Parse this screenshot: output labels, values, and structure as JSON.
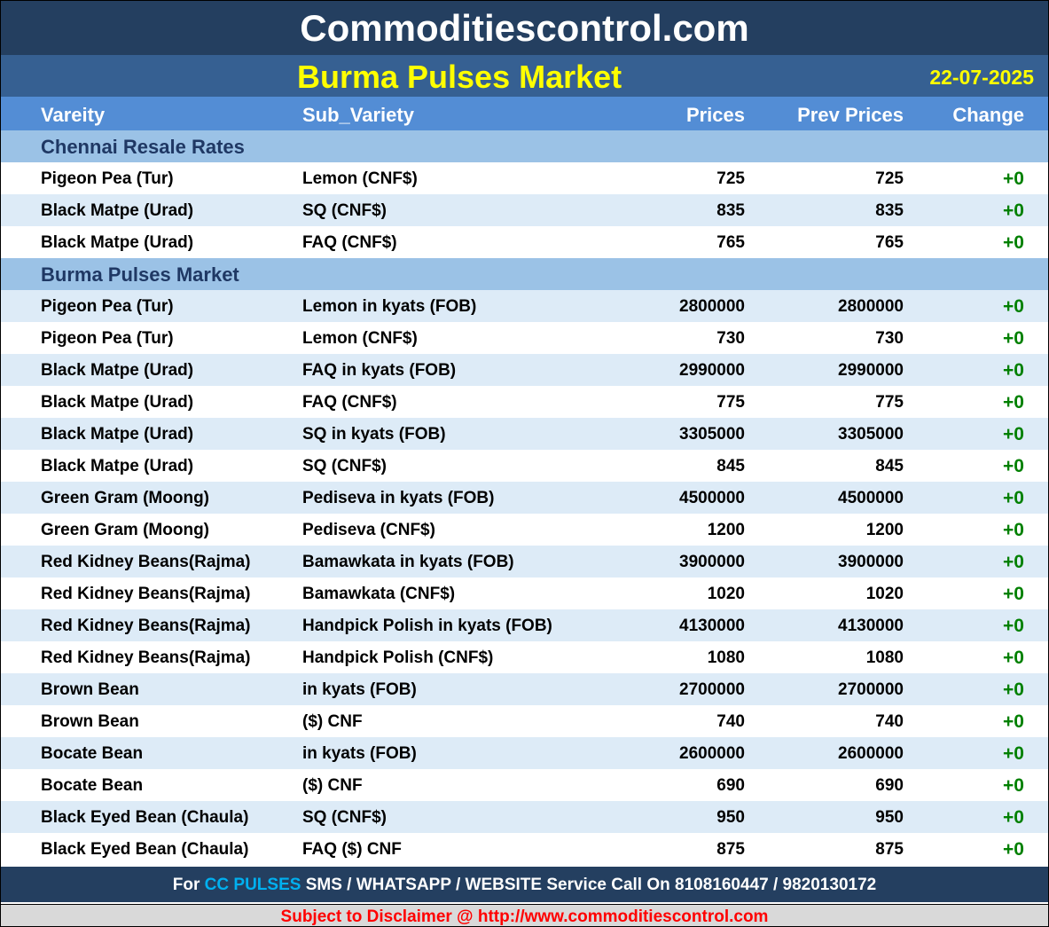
{
  "site_title": "Commoditiescontrol.com",
  "market_title": "Burma Pulses Market",
  "date": "22-07-2025",
  "columns": [
    "Vareity",
    "Sub_Variety",
    "Prices",
    "Prev Prices",
    "Change"
  ],
  "sections": [
    {
      "title": "Chennai Resale Rates",
      "rows": [
        [
          "Pigeon Pea (Tur)",
          "Lemon (CNF$)",
          "725",
          "725",
          "+0"
        ],
        [
          "Black Matpe (Urad)",
          "SQ (CNF$)",
          "835",
          "835",
          "+0"
        ],
        [
          "Black Matpe (Urad)",
          "FAQ (CNF$)",
          "765",
          "765",
          "+0"
        ]
      ]
    },
    {
      "title": "Burma Pulses Market",
      "rows": [
        [
          "Pigeon Pea (Tur)",
          "Lemon in kyats (FOB)",
          "2800000",
          "2800000",
          "+0"
        ],
        [
          "Pigeon Pea (Tur)",
          "Lemon (CNF$)",
          "730",
          "730",
          "+0"
        ],
        [
          "Black Matpe (Urad)",
          "FAQ in kyats (FOB)",
          "2990000",
          "2990000",
          "+0"
        ],
        [
          "Black Matpe (Urad)",
          "FAQ (CNF$)",
          "775",
          "775",
          "+0"
        ],
        [
          "Black Matpe (Urad)",
          "SQ in kyats (FOB)",
          "3305000",
          "3305000",
          "+0"
        ],
        [
          "Black Matpe (Urad)",
          "SQ (CNF$)",
          "845",
          "845",
          "+0"
        ],
        [
          "Green Gram (Moong)",
          "Pediseva in kyats (FOB)",
          "4500000",
          "4500000",
          "+0"
        ],
        [
          "Green Gram (Moong)",
          "Pediseva (CNF$)",
          "1200",
          "1200",
          "+0"
        ],
        [
          "Red Kidney Beans(Rajma)",
          "Bamawkata in kyats (FOB)",
          "3900000",
          "3900000",
          "+0"
        ],
        [
          "Red Kidney Beans(Rajma)",
          "Bamawkata (CNF$)",
          "1020",
          "1020",
          "+0"
        ],
        [
          "Red Kidney Beans(Rajma)",
          "Handpick Polish in kyats (FOB)",
          "4130000",
          "4130000",
          "+0"
        ],
        [
          "Red Kidney Beans(Rajma)",
          "Handpick Polish (CNF$)",
          "1080",
          "1080",
          "+0"
        ],
        [
          "Brown Bean",
          "in kyats (FOB)",
          "2700000",
          "2700000",
          "+0"
        ],
        [
          "Brown Bean",
          "($) CNF",
          "740",
          "740",
          "+0"
        ],
        [
          "Bocate Bean",
          "in kyats (FOB)",
          "2600000",
          "2600000",
          "+0"
        ],
        [
          "Bocate Bean",
          "($) CNF",
          "690",
          "690",
          "+0"
        ],
        [
          "Black Eyed Bean (Chaula)",
          "SQ (CNF$)",
          "950",
          "950",
          "+0"
        ],
        [
          "Black Eyed Bean (Chaula)",
          "FAQ ($) CNF",
          "875",
          "875",
          "+0"
        ]
      ]
    }
  ],
  "footer": {
    "pre": "For ",
    "highlight": "CC PULSES",
    "post": " SMS / WHATSAPP / WEBSITE Service Call On 8108160447 / 9820130172"
  },
  "disclaimer": "Subject to Disclaimer @  http://www.commoditiescontrol.com",
  "colors": {
    "title_bg": "#243f60",
    "subtitle_bg": "#366092",
    "header_bg": "#538dd5",
    "section_bg": "#9bc2e6",
    "alt_row": "#ddebf7",
    "change": "#008000",
    "title_yellow": "#ffff00",
    "disclaimer": "#ff0000"
  }
}
